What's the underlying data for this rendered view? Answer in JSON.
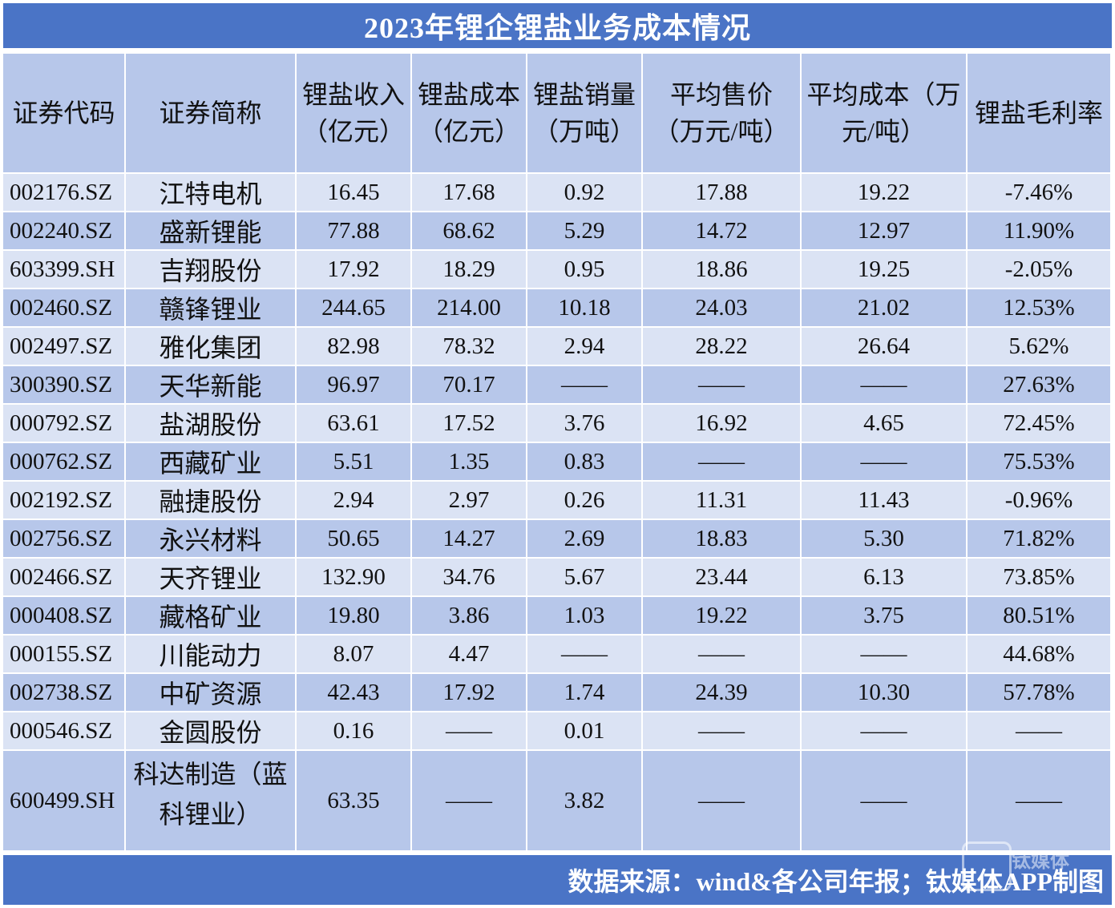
{
  "title": "2023年锂企锂盐业务成本情况",
  "headers": {
    "code": "证券代码",
    "name": "证券简称",
    "revenue": "锂盐收入（亿元）",
    "cost": "锂盐成本（亿元）",
    "volume": "锂盐销量（万吨）",
    "avg_price": "平均售价（万元/吨）",
    "avg_cost": "平均成本（万元/吨）",
    "margin": "锂盐毛利率"
  },
  "rows": [
    {
      "code": "002176.SZ",
      "name": "江特电机",
      "revenue": "16.45",
      "cost": "17.68",
      "volume": "0.92",
      "avg_price": "17.88",
      "avg_cost": "19.22",
      "margin": "-7.46%"
    },
    {
      "code": "002240.SZ",
      "name": "盛新锂能",
      "revenue": "77.88",
      "cost": "68.62",
      "volume": "5.29",
      "avg_price": "14.72",
      "avg_cost": "12.97",
      "margin": "11.90%"
    },
    {
      "code": "603399.SH",
      "name": "吉翔股份",
      "revenue": "17.92",
      "cost": "18.29",
      "volume": "0.95",
      "avg_price": "18.86",
      "avg_cost": "19.25",
      "margin": "-2.05%"
    },
    {
      "code": "002460.SZ",
      "name": "赣锋锂业",
      "revenue": "244.65",
      "cost": "214.00",
      "volume": "10.18",
      "avg_price": "24.03",
      "avg_cost": "21.02",
      "margin": "12.53%"
    },
    {
      "code": "002497.SZ",
      "name": "雅化集团",
      "revenue": "82.98",
      "cost": "78.32",
      "volume": "2.94",
      "avg_price": "28.22",
      "avg_cost": "26.64",
      "margin": "5.62%"
    },
    {
      "code": "300390.SZ",
      "name": "天华新能",
      "revenue": "96.97",
      "cost": "70.17",
      "volume": "——",
      "avg_price": "——",
      "avg_cost": "——",
      "margin": "27.63%"
    },
    {
      "code": "000792.SZ",
      "name": "盐湖股份",
      "revenue": "63.61",
      "cost": "17.52",
      "volume": "3.76",
      "avg_price": "16.92",
      "avg_cost": "4.65",
      "margin": "72.45%"
    },
    {
      "code": "000762.SZ",
      "name": "西藏矿业",
      "revenue": "5.51",
      "cost": "1.35",
      "volume": "0.83",
      "avg_price": "——",
      "avg_cost": "——",
      "margin": "75.53%"
    },
    {
      "code": "002192.SZ",
      "name": "融捷股份",
      "revenue": "2.94",
      "cost": "2.97",
      "volume": "0.26",
      "avg_price": "11.31",
      "avg_cost": "11.43",
      "margin": "-0.96%"
    },
    {
      "code": "002756.SZ",
      "name": "永兴材料",
      "revenue": "50.65",
      "cost": "14.27",
      "volume": "2.69",
      "avg_price": "18.83",
      "avg_cost": "5.30",
      "margin": "71.82%"
    },
    {
      "code": "002466.SZ",
      "name": "天齐锂业",
      "revenue": "132.90",
      "cost": "34.76",
      "volume": "5.67",
      "avg_price": "23.44",
      "avg_cost": "6.13",
      "margin": "73.85%"
    },
    {
      "code": "000408.SZ",
      "name": "藏格矿业",
      "revenue": "19.80",
      "cost": "3.86",
      "volume": "1.03",
      "avg_price": "19.22",
      "avg_cost": "3.75",
      "margin": "80.51%"
    },
    {
      "code": "000155.SZ",
      "name": "川能动力",
      "revenue": "8.07",
      "cost": "4.47",
      "volume": "——",
      "avg_price": "——",
      "avg_cost": "——",
      "margin": "44.68%"
    },
    {
      "code": "002738.SZ",
      "name": "中矿资源",
      "revenue": "42.43",
      "cost": "17.92",
      "volume": "1.74",
      "avg_price": "24.39",
      "avg_cost": "10.30",
      "margin": "57.78%"
    },
    {
      "code": "000546.SZ",
      "name": "金圆股份",
      "revenue": "0.16",
      "cost": "——",
      "volume": "0.01",
      "avg_price": "——",
      "avg_cost": "——",
      "margin": "——"
    },
    {
      "code": "600499.SH",
      "name": "科达制造（蓝科锂业）",
      "revenue": "63.35",
      "cost": "——",
      "volume": "3.82",
      "avg_price": "——",
      "avg_cost": "——",
      "margin": "——"
    }
  ],
  "footer": "数据来源：wind&各公司年报；钛媒体APP制图",
  "watermark": "钛媒体"
}
